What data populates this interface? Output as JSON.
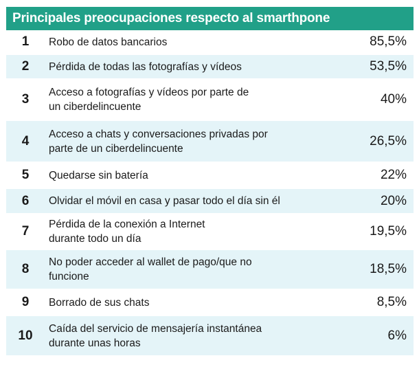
{
  "table": {
    "title": "Principales preocupaciones respecto al smarthpone",
    "rows": [
      {
        "rank": "1",
        "lines": [
          "Robo de datos bancarios"
        ],
        "pct": "85,5%"
      },
      {
        "rank": "2",
        "lines": [
          "Pérdida de todas las fotografías y vídeos"
        ],
        "pct": "53,5%"
      },
      {
        "rank": "3",
        "lines": [
          "Acceso a fotografías y vídeos por parte de",
          "un ciberdelincuente"
        ],
        "pct": "40%"
      },
      {
        "rank": "4",
        "lines": [
          "Acceso a chats y conversaciones privadas por",
          "parte de un ciberdelincuente"
        ],
        "pct": "26,5%"
      },
      {
        "rank": "5",
        "lines": [
          "Quedarse sin batería"
        ],
        "pct": "22%"
      },
      {
        "rank": "6",
        "lines": [
          "Olvidar el móvil en casa y pasar todo el día sin él"
        ],
        "pct": "20%"
      },
      {
        "rank": "7",
        "lines": [
          "Pérdida de la conexión a Internet",
          "durante todo un día"
        ],
        "pct": "19,5%"
      },
      {
        "rank": "8",
        "lines": [
          "No poder acceder al wallet de pago/que no",
          "funcione"
        ],
        "pct": "18,5%"
      },
      {
        "rank": "9",
        "lines": [
          "Borrado de sus chats"
        ],
        "pct": "8,5%"
      },
      {
        "rank": "10",
        "lines": [
          "Caída del servicio de mensajería instantánea",
          "durante unas horas"
        ],
        "pct": "6%"
      }
    ]
  },
  "colors": {
    "header_bg": "#21a088",
    "row_shade": "#e4f4f8"
  }
}
